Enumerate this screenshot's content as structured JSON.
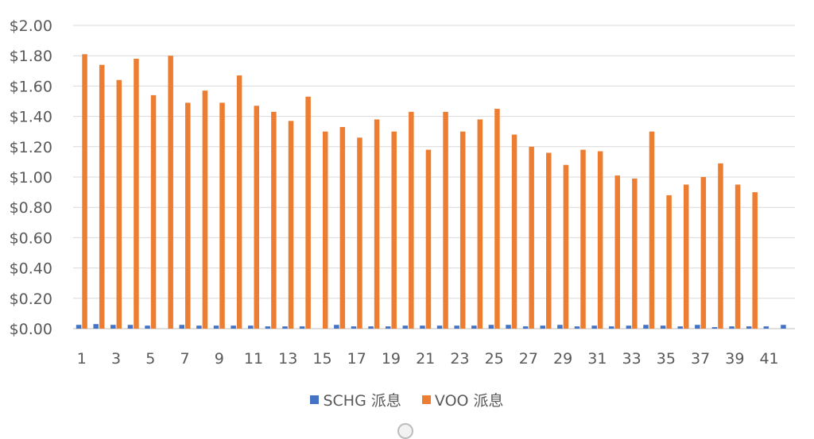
{
  "colors": {
    "schg": "#4472C4",
    "voo": "#ED7D31",
    "grid": "#d9d9d9",
    "axis": "#bfbfbf",
    "text": "#595959"
  },
  "legend": {
    "schg_label": "SCHG 派息",
    "voo_label": "VOO 派息"
  },
  "chart_data": {
    "type": "bar",
    "categories": [
      1,
      2,
      3,
      4,
      5,
      6,
      7,
      8,
      9,
      10,
      11,
      12,
      13,
      14,
      15,
      16,
      17,
      18,
      19,
      20,
      21,
      22,
      23,
      24,
      25,
      26,
      27,
      28,
      29,
      30,
      31,
      32,
      33,
      34,
      35,
      36,
      37,
      38,
      39,
      40,
      41,
      42
    ],
    "x_tick_labels": [
      "1",
      "3",
      "5",
      "7",
      "9",
      "11",
      "13",
      "15",
      "17",
      "19",
      "21",
      "23",
      "25",
      "27",
      "29",
      "31",
      "33",
      "35",
      "37",
      "39",
      "41"
    ],
    "y_tick_labels": [
      "$0.00",
      "$0.20",
      "$0.40",
      "$0.60",
      "$0.80",
      "$1.00",
      "$1.20",
      "$1.40",
      "$1.60",
      "$1.80",
      "$2.00"
    ],
    "ylim": [
      0,
      2.0
    ],
    "grid": true,
    "legend_position": "bottom",
    "series": [
      {
        "name": "SCHG 派息",
        "color": "#4472C4",
        "values": [
          0.025,
          0.03,
          0.025,
          0.025,
          0.02,
          0.0,
          0.025,
          0.02,
          0.02,
          0.02,
          0.02,
          0.015,
          0.015,
          0.015,
          0.0,
          0.025,
          0.015,
          0.015,
          0.015,
          0.02,
          0.02,
          0.02,
          0.02,
          0.02,
          0.025,
          0.025,
          0.015,
          0.02,
          0.025,
          0.015,
          0.02,
          0.015,
          0.02,
          0.025,
          0.02,
          0.015,
          0.025,
          0.01,
          0.015,
          0.015,
          0.015,
          0.025
        ]
      },
      {
        "name": "VOO 派息",
        "color": "#ED7D31",
        "values": [
          1.81,
          1.74,
          1.64,
          1.78,
          1.54,
          1.8,
          1.49,
          1.57,
          1.49,
          1.67,
          1.47,
          1.43,
          1.37,
          1.53,
          1.3,
          1.33,
          1.26,
          1.38,
          1.3,
          1.43,
          1.18,
          1.43,
          1.3,
          1.38,
          1.45,
          1.28,
          1.2,
          1.16,
          1.08,
          1.18,
          1.17,
          1.01,
          0.99,
          1.3,
          0.88,
          0.95,
          1.0,
          1.09,
          0.95,
          0.9,
          0.0,
          0.0
        ]
      }
    ]
  }
}
